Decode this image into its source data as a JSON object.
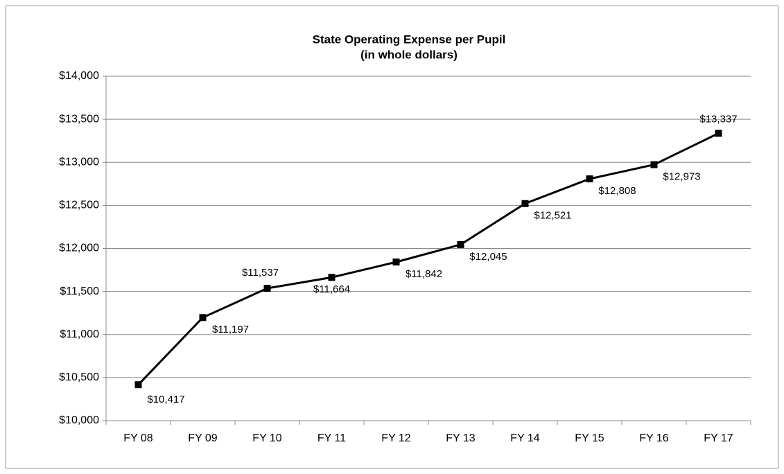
{
  "chart_data": {
    "type": "line",
    "title": "State Operating Expense per Pupil",
    "subtitle": "(in whole dollars)",
    "categories": [
      "FY 08",
      "FY 09",
      "FY 10",
      "FY 11",
      "FY 12",
      "FY 13",
      "FY 14",
      "FY 15",
      "FY 16",
      "FY 17"
    ],
    "values": [
      10417,
      11197,
      11537,
      11664,
      11842,
      12045,
      12521,
      12808,
      12973,
      13337
    ],
    "value_labels": [
      "$10,417",
      "$11,197",
      "$11,537",
      "$11,664",
      "$11,842",
      "$12,045",
      "$12,521",
      "$12,808",
      "$12,973",
      "$13,337"
    ],
    "color": "#000000",
    "ylim": [
      10000,
      14000
    ],
    "yticks": [
      {
        "value": 10000,
        "label": "$10,000"
      },
      {
        "value": 10500,
        "label": "$10,500"
      },
      {
        "value": 11000,
        "label": "$11,000"
      },
      {
        "value": 11500,
        "label": "$11,500"
      },
      {
        "value": 12000,
        "label": "$12,000"
      },
      {
        "value": 12500,
        "label": "$12,500"
      },
      {
        "value": 13000,
        "label": "$13,000"
      },
      {
        "value": 13500,
        "label": "$13,500"
      },
      {
        "value": 14000,
        "label": "$14,000"
      }
    ],
    "grid": true
  }
}
